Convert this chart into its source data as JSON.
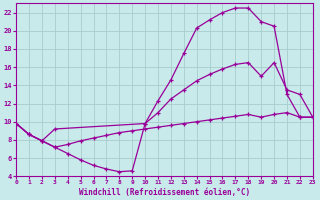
{
  "xlabel": "Windchill (Refroidissement éolien,°C)",
  "bg_color": "#c8eaea",
  "grid_color": "#a8cccc",
  "line_color": "#990099",
  "xlim": [
    0,
    23
  ],
  "ylim": [
    4,
    23
  ],
  "xticks": [
    0,
    1,
    2,
    3,
    4,
    5,
    6,
    7,
    8,
    9,
    10,
    11,
    12,
    13,
    14,
    15,
    16,
    17,
    18,
    19,
    20,
    21,
    22,
    23
  ],
  "yticks": [
    4,
    6,
    8,
    10,
    12,
    14,
    16,
    18,
    20,
    22
  ],
  "curve1_x": [
    0,
    1,
    2,
    3,
    4,
    5,
    6,
    7,
    8,
    9,
    10,
    11,
    12,
    13,
    14,
    15,
    16,
    17,
    18,
    19,
    20,
    21,
    22,
    23
  ],
  "curve1_y": [
    9.8,
    8.6,
    7.9,
    7.2,
    6.5,
    5.8,
    5.2,
    4.8,
    4.5,
    4.6,
    9.8,
    12.3,
    14.6,
    17.5,
    20.3,
    21.2,
    22.0,
    22.5,
    22.5,
    21.0,
    20.5,
    13.0,
    10.5,
    10.5
  ],
  "curve2_x": [
    0,
    1,
    2,
    3,
    10,
    11,
    12,
    13,
    14,
    15,
    16,
    17,
    18,
    19,
    20,
    21,
    22,
    23
  ],
  "curve2_y": [
    9.8,
    8.6,
    7.9,
    9.2,
    9.8,
    11.0,
    12.5,
    13.5,
    14.5,
    15.2,
    15.8,
    16.3,
    16.5,
    15.0,
    16.5,
    13.5,
    13.0,
    10.5
  ],
  "curve3_x": [
    0,
    1,
    2,
    3,
    4,
    5,
    6,
    7,
    8,
    9,
    10,
    11,
    12,
    13,
    14,
    15,
    16,
    17,
    18,
    19,
    20,
    21,
    22,
    23
  ],
  "curve3_y": [
    9.8,
    8.6,
    7.9,
    7.2,
    7.5,
    7.9,
    8.2,
    8.5,
    8.8,
    9.0,
    9.2,
    9.4,
    9.6,
    9.8,
    10.0,
    10.2,
    10.4,
    10.6,
    10.8,
    10.5,
    10.8,
    11.0,
    10.5,
    10.5
  ]
}
